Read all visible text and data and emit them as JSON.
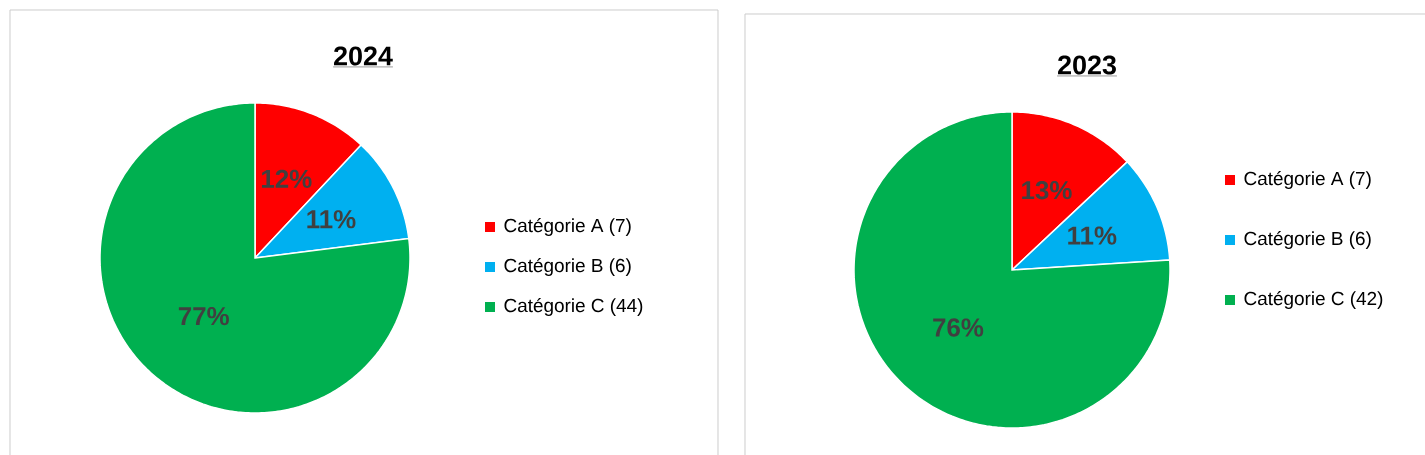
{
  "chart_data": [
    {
      "type": "pie",
      "title": "2024",
      "categories": [
        "Catégorie A (7)",
        "Catégorie B (6)",
        "Catégorie C (44)"
      ],
      "values": [
        12,
        11,
        77
      ],
      "colors": [
        "#ff0000",
        "#00b0f0",
        "#00b050"
      ],
      "value_labels": [
        "12%",
        "11%",
        "77%"
      ],
      "legend": "right"
    },
    {
      "type": "pie",
      "title": "2023",
      "categories": [
        "Catégorie A (7)",
        "Catégorie B (6)",
        "Catégorie C  (42)"
      ],
      "values": [
        13,
        11,
        76
      ],
      "colors": [
        "#ff0000",
        "#00b0f0",
        "#00b050"
      ],
      "value_labels": [
        "13%",
        "11%",
        "76%"
      ],
      "legend": "right"
    }
  ]
}
